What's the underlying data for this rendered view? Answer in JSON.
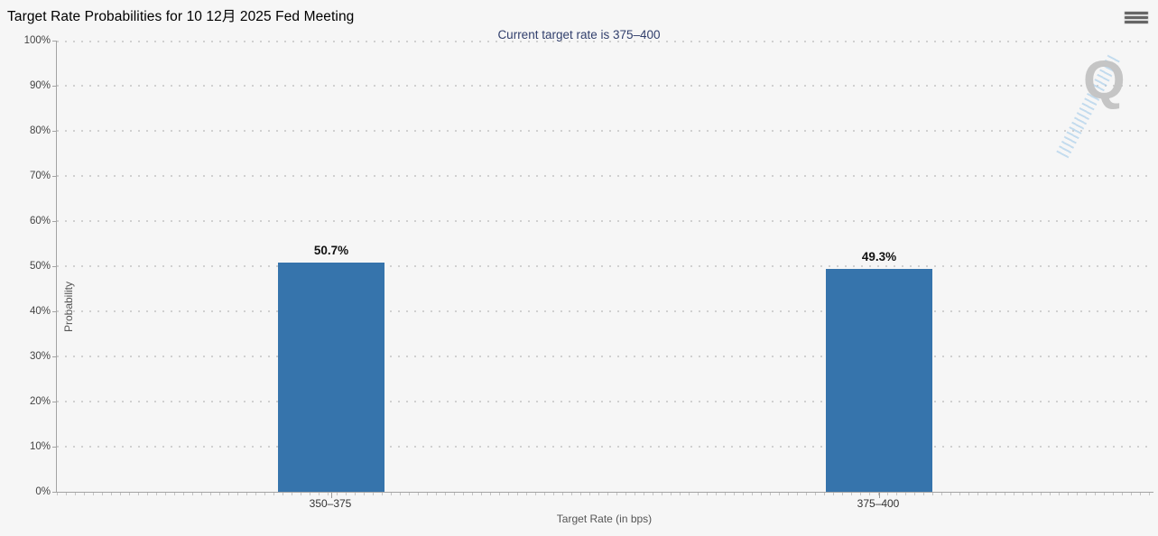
{
  "chart_data": {
    "type": "bar",
    "title": "Target Rate Probabilities for 10 12月 2025 Fed Meeting",
    "subtitle": "Current target rate is 375–400",
    "categories": [
      "350–375",
      "375–400"
    ],
    "values": [
      50.7,
      49.3
    ],
    "value_labels": [
      "50.7%",
      "49.3%"
    ],
    "xlabel": "Target Rate (in bps)",
    "ylabel": "Probability",
    "ylim": [
      0,
      100
    ],
    "ytick_step": 10,
    "ytick_labels": [
      "0%",
      "10%",
      "20%",
      "30%",
      "40%",
      "50%",
      "60%",
      "70%",
      "80%",
      "90%",
      "100%"
    ],
    "grid": "dotted-horizontal",
    "legend": "none",
    "watermark_letter": "Q"
  },
  "icons": {
    "context_menu": "hamburger-icon",
    "watermark": "quikstrike-q-watermark"
  },
  "colors": {
    "background": "#f6f6f6",
    "bar": "#3674ac",
    "subtitle": "#32406d",
    "axis_line": "#a3a3a3",
    "gridline": "#d0d0d0",
    "watermark_gray": "#c3c3c3",
    "watermark_blue": "#a8cde9"
  }
}
